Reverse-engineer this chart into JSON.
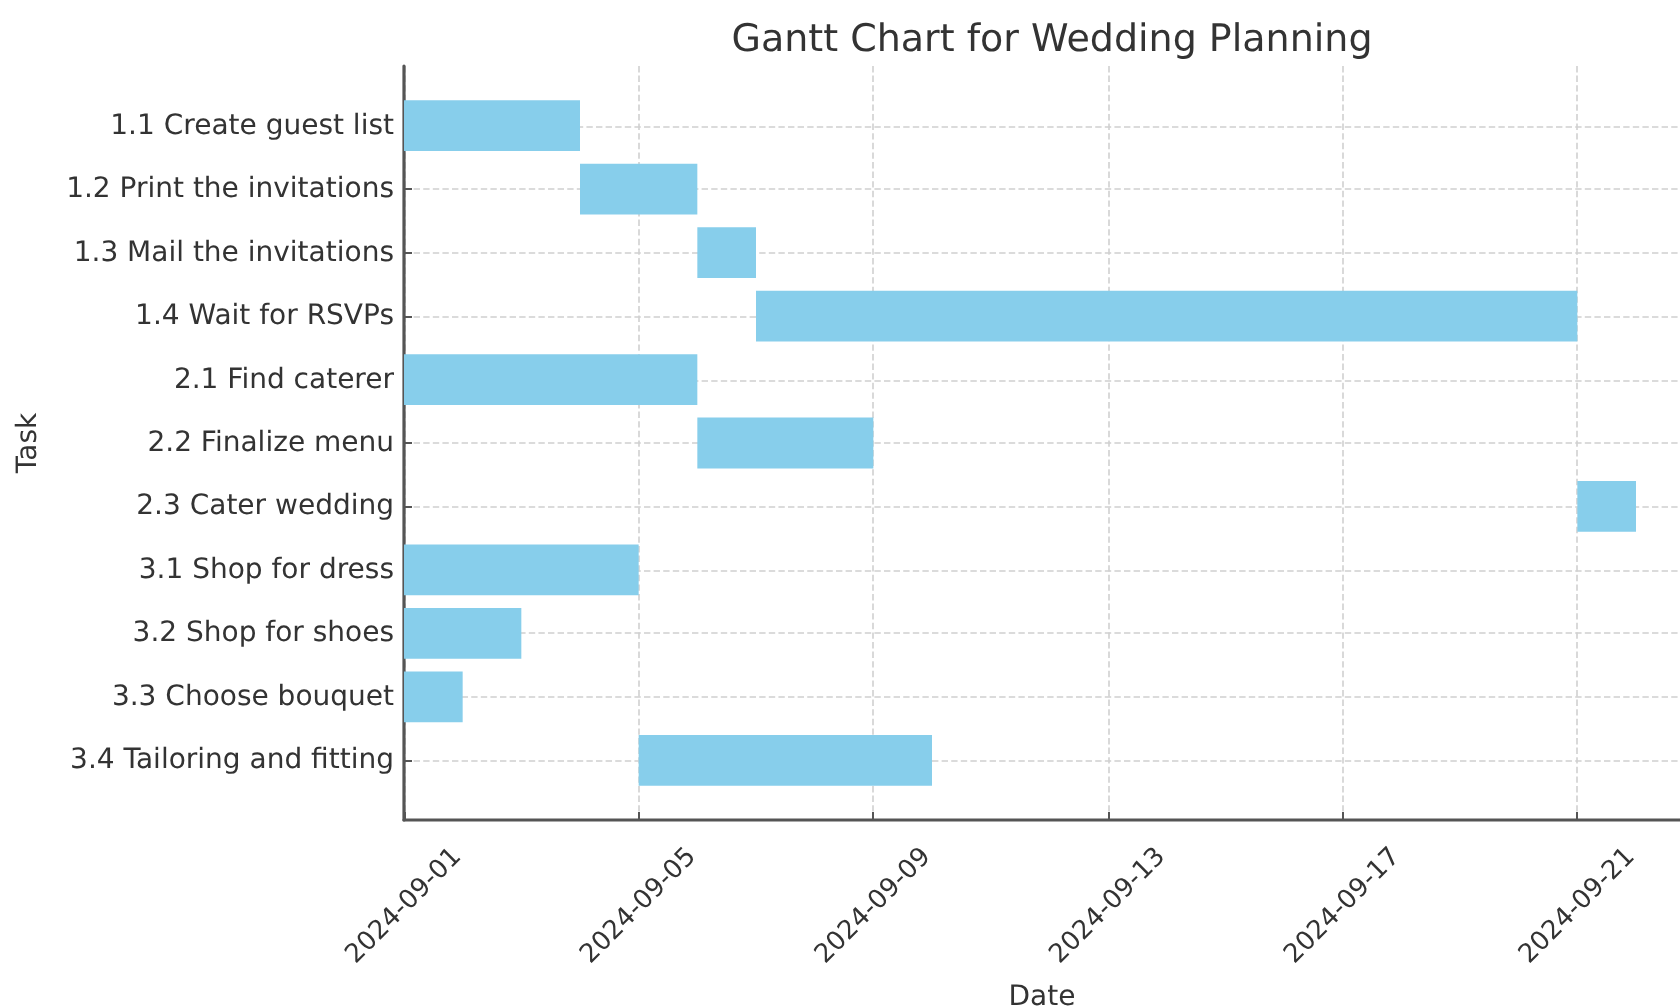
{
  "chart_data": {
    "type": "bar",
    "orientation": "horizontal",
    "title": "Gantt Chart for Wedding Planning",
    "xlabel": "Date",
    "ylabel": "Task",
    "categories": [
      "1.1 Create guest list",
      "1.2 Print the invitations",
      "1.3 Mail the invitations",
      "1.4 Wait for RSVPs",
      "2.1 Find caterer",
      "2.2 Finalize menu",
      "2.3 Cater wedding",
      "3.1 Shop for dress",
      "3.2 Shop for shoes",
      "3.3 Choose bouquet",
      "3.4 Tailoring and fitting"
    ],
    "base": [
      19967,
      19970,
      19972,
      19973,
      19967,
      19972,
      19987,
      19967,
      19967,
      19967,
      19971
    ],
    "values": [
      3,
      2,
      1,
      14,
      5,
      3,
      1,
      4,
      2,
      1,
      5
    ],
    "color": "#87ceeb",
    "xlim": [
      "2024-09-01",
      "2024-09-22T18:00"
    ],
    "xticks": [
      "2024-09-01",
      "2024-09-05",
      "2024-09-09",
      "2024-09-13",
      "2024-09-17",
      "2024-09-21"
    ],
    "grid": true
  }
}
